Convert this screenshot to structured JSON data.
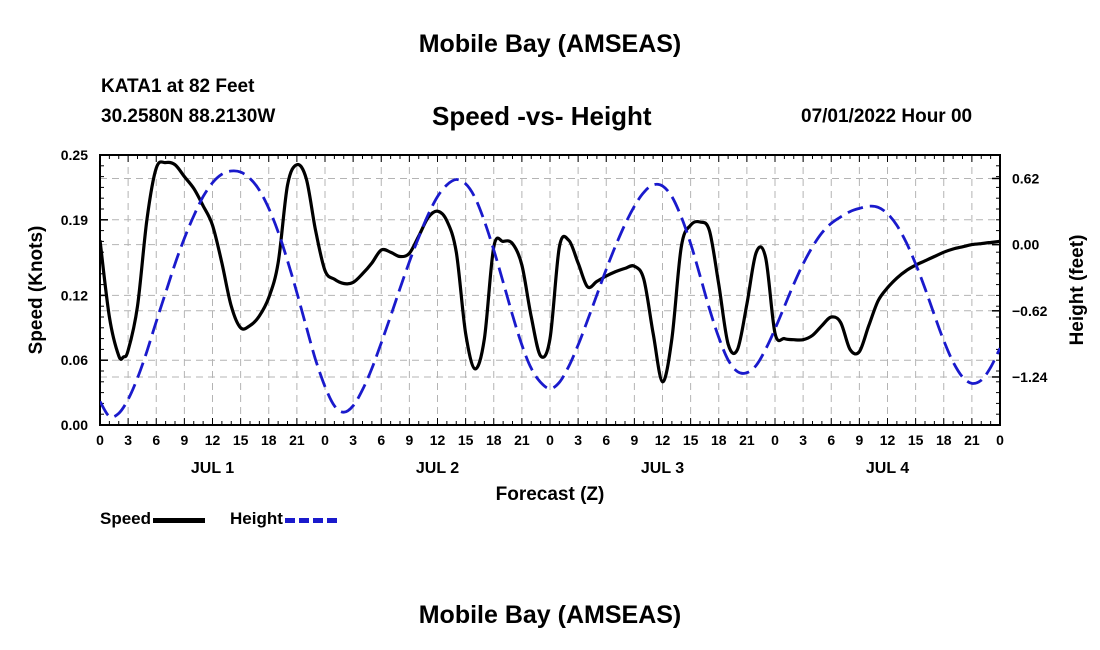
{
  "header": {
    "title": "Mobile Bay (AMSEAS)",
    "station": "KATA1 at 82 Feet",
    "coords": "30.2580N  88.2130W",
    "subtitle": "Speed -vs- Height",
    "run_time": "07/01/2022 Hour 00"
  },
  "footer": {
    "title": "Mobile Bay (AMSEAS)"
  },
  "legend": {
    "items": [
      {
        "label": "Speed",
        "color": "#000000",
        "style": "solid"
      },
      {
        "label": "Height",
        "color": "#1a1acc",
        "style": "dashed"
      }
    ]
  },
  "chart_data": {
    "type": "line",
    "xlabel": "Forecast (Z)",
    "ylabel_left": "Speed (Knots)",
    "ylabel_right": "Height (feet)",
    "x_range_hours": [
      0,
      96
    ],
    "x_tick_labels": [
      "0",
      "3",
      "6",
      "9",
      "12",
      "15",
      "18",
      "21",
      "0",
      "3",
      "6",
      "9",
      "12",
      "15",
      "18",
      "21",
      "0",
      "3",
      "6",
      "9",
      "12",
      "15",
      "18",
      "21",
      "0",
      "3",
      "6",
      "9",
      "12",
      "15",
      "18",
      "21",
      "0"
    ],
    "date_labels": [
      {
        "label": "JUL 1",
        "hour": 12
      },
      {
        "label": "JUL 2",
        "hour": 36
      },
      {
        "label": "JUL 3",
        "hour": 60
      },
      {
        "label": "JUL 4",
        "hour": 84
      }
    ],
    "y_left": {
      "range": [
        0,
        0.25
      ],
      "ticks": [
        0.0,
        0.06,
        0.12,
        0.19,
        0.25
      ],
      "tick_labels": [
        "0.00",
        "0.06",
        "0.12",
        "0.19",
        "0.25"
      ]
    },
    "y_right": {
      "range": [
        -1.69,
        0.84
      ],
      "ticks": [
        -1.24,
        -0.62,
        0.0,
        0.62
      ],
      "tick_labels": [
        "−1.24",
        "−0.62",
        "0.00",
        "0.62"
      ]
    },
    "grid": true,
    "series": [
      {
        "name": "Speed",
        "axis": "left",
        "color": "#000000",
        "dash": "solid",
        "points": [
          [
            0,
            0.171
          ],
          [
            1,
            0.1
          ],
          [
            2,
            0.064
          ],
          [
            2.5,
            0.063
          ],
          [
            3,
            0.069
          ],
          [
            4,
            0.11
          ],
          [
            5,
            0.19
          ],
          [
            6,
            0.238
          ],
          [
            7,
            0.243
          ],
          [
            8,
            0.241
          ],
          [
            9,
            0.23
          ],
          [
            10,
            0.219
          ],
          [
            11,
            0.203
          ],
          [
            12,
            0.185
          ],
          [
            13,
            0.15
          ],
          [
            14,
            0.11
          ],
          [
            15,
            0.09
          ],
          [
            16,
            0.092
          ],
          [
            17,
            0.101
          ],
          [
            18,
            0.118
          ],
          [
            19,
            0.15
          ],
          [
            20,
            0.222
          ],
          [
            21,
            0.241
          ],
          [
            22,
            0.228
          ],
          [
            23,
            0.18
          ],
          [
            24,
            0.143
          ],
          [
            25,
            0.135
          ],
          [
            26,
            0.131
          ],
          [
            27,
            0.132
          ],
          [
            28,
            0.14
          ],
          [
            29,
            0.15
          ],
          [
            30,
            0.162
          ],
          [
            31,
            0.16
          ],
          [
            32,
            0.156
          ],
          [
            33,
            0.159
          ],
          [
            34,
            0.175
          ],
          [
            35,
            0.192
          ],
          [
            36,
            0.198
          ],
          [
            37,
            0.189
          ],
          [
            38,
            0.16
          ],
          [
            39,
            0.085
          ],
          [
            40,
            0.052
          ],
          [
            41,
            0.08
          ],
          [
            42,
            0.165
          ],
          [
            43,
            0.17
          ],
          [
            44,
            0.168
          ],
          [
            45,
            0.148
          ],
          [
            46,
            0.1
          ],
          [
            47,
            0.064
          ],
          [
            48,
            0.08
          ],
          [
            49,
            0.165
          ],
          [
            50,
            0.171
          ],
          [
            51,
            0.15
          ],
          [
            52,
            0.128
          ],
          [
            53,
            0.133
          ],
          [
            54,
            0.138
          ],
          [
            55,
            0.142
          ],
          [
            56,
            0.145
          ],
          [
            57,
            0.147
          ],
          [
            58,
            0.135
          ],
          [
            59,
            0.085
          ],
          [
            60,
            0.04
          ],
          [
            61,
            0.08
          ],
          [
            62,
            0.165
          ],
          [
            63,
            0.185
          ],
          [
            64,
            0.188
          ],
          [
            65,
            0.18
          ],
          [
            66,
            0.13
          ],
          [
            67,
            0.075
          ],
          [
            68,
            0.07
          ],
          [
            69,
            0.112
          ],
          [
            70,
            0.16
          ],
          [
            71,
            0.155
          ],
          [
            72,
            0.085
          ],
          [
            73,
            0.08
          ],
          [
            74,
            0.079
          ],
          [
            75,
            0.079
          ],
          [
            76,
            0.083
          ],
          [
            77,
            0.092
          ],
          [
            78,
            0.1
          ],
          [
            79,
            0.095
          ],
          [
            80,
            0.07
          ],
          [
            81,
            0.068
          ],
          [
            82,
            0.092
          ],
          [
            83,
            0.115
          ],
          [
            84,
            0.127
          ],
          [
            85,
            0.136
          ],
          [
            86,
            0.143
          ],
          [
            87,
            0.148
          ],
          [
            88,
            0.152
          ],
          [
            89,
            0.156
          ],
          [
            90,
            0.16
          ],
          [
            91,
            0.163
          ],
          [
            92,
            0.165
          ],
          [
            93,
            0.167
          ],
          [
            94,
            0.168
          ],
          [
            95,
            0.169
          ],
          [
            96,
            0.17
          ]
        ]
      },
      {
        "name": "Height",
        "axis": "right",
        "color": "#1a1acc",
        "dash": "dashed",
        "points": [
          [
            0,
            -1.47
          ],
          [
            1,
            -1.61
          ],
          [
            2,
            -1.58
          ],
          [
            3,
            -1.45
          ],
          [
            4,
            -1.25
          ],
          [
            5,
            -1.0
          ],
          [
            6,
            -0.72
          ],
          [
            7,
            -0.45
          ],
          [
            8,
            -0.18
          ],
          [
            9,
            0.06
          ],
          [
            10,
            0.27
          ],
          [
            11,
            0.45
          ],
          [
            12,
            0.58
          ],
          [
            13,
            0.66
          ],
          [
            14,
            0.69
          ],
          [
            15,
            0.68
          ],
          [
            16,
            0.62
          ],
          [
            17,
            0.51
          ],
          [
            18,
            0.34
          ],
          [
            19,
            0.12
          ],
          [
            20,
            -0.15
          ],
          [
            21,
            -0.45
          ],
          [
            22,
            -0.77
          ],
          [
            23,
            -1.08
          ],
          [
            24,
            -1.33
          ],
          [
            25,
            -1.51
          ],
          [
            26,
            -1.57
          ],
          [
            27,
            -1.51
          ],
          [
            28,
            -1.36
          ],
          [
            29,
            -1.16
          ],
          [
            30,
            -0.92
          ],
          [
            31,
            -0.67
          ],
          [
            32,
            -0.41
          ],
          [
            33,
            -0.16
          ],
          [
            34,
            0.07
          ],
          [
            35,
            0.28
          ],
          [
            36,
            0.45
          ],
          [
            37,
            0.56
          ],
          [
            38,
            0.61
          ],
          [
            39,
            0.57
          ],
          [
            40,
            0.44
          ],
          [
            41,
            0.22
          ],
          [
            42,
            -0.05
          ],
          [
            43,
            -0.35
          ],
          [
            44,
            -0.66
          ],
          [
            45,
            -0.94
          ],
          [
            46,
            -1.16
          ],
          [
            47,
            -1.29
          ],
          [
            48,
            -1.35
          ],
          [
            49,
            -1.29
          ],
          [
            50,
            -1.14
          ],
          [
            51,
            -0.94
          ],
          [
            52,
            -0.71
          ],
          [
            53,
            -0.47
          ],
          [
            54,
            -0.23
          ],
          [
            55,
            -0.01
          ],
          [
            56,
            0.19
          ],
          [
            57,
            0.36
          ],
          [
            58,
            0.49
          ],
          [
            59,
            0.56
          ],
          [
            60,
            0.55
          ],
          [
            61,
            0.45
          ],
          [
            62,
            0.26
          ],
          [
            63,
            0.01
          ],
          [
            64,
            -0.29
          ],
          [
            65,
            -0.6
          ],
          [
            66,
            -0.87
          ],
          [
            67,
            -1.08
          ],
          [
            68,
            -1.19
          ],
          [
            69,
            -1.2
          ],
          [
            70,
            -1.13
          ],
          [
            71,
            -0.98
          ],
          [
            72,
            -0.79
          ],
          [
            73,
            -0.58
          ],
          [
            74,
            -0.37
          ],
          [
            75,
            -0.18
          ],
          [
            76,
            -0.02
          ],
          [
            77,
            0.11
          ],
          [
            78,
            0.2
          ],
          [
            79,
            0.26
          ],
          [
            80,
            0.31
          ],
          [
            81,
            0.34
          ],
          [
            82,
            0.36
          ],
          [
            83,
            0.35
          ],
          [
            84,
            0.29
          ],
          [
            85,
            0.18
          ],
          [
            86,
            0.02
          ],
          [
            87,
            -0.18
          ],
          [
            88,
            -0.41
          ],
          [
            89,
            -0.66
          ],
          [
            90,
            -0.9
          ],
          [
            91,
            -1.1
          ],
          [
            92,
            -1.24
          ],
          [
            93,
            -1.3
          ],
          [
            94,
            -1.27
          ],
          [
            95,
            -1.15
          ],
          [
            96,
            -0.97
          ]
        ]
      }
    ]
  }
}
